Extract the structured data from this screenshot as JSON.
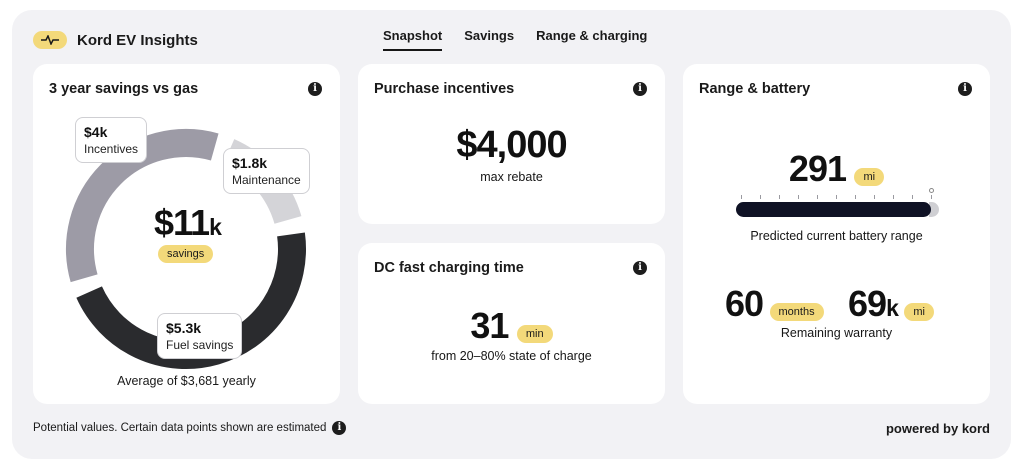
{
  "app": {
    "title": "Kord EV Insights",
    "pulse_icon": "pulse-icon"
  },
  "tabs": [
    {
      "label": "Snapshot",
      "active": true
    },
    {
      "label": "Savings",
      "active": false
    },
    {
      "label": "Range & charging",
      "active": false
    }
  ],
  "savings_card": {
    "title": "3 year savings vs gas",
    "center_value": "$11",
    "center_unit": "k",
    "center_badge": "savings",
    "average": "Average of $3,681 yearly",
    "segments": [
      {
        "value": "$4k",
        "label": "Incentives",
        "amount_k": 4,
        "color": "#9d9ba6"
      },
      {
        "value": "$1.8k",
        "label": "Maintenance",
        "amount_k": 1.8,
        "color": "#d4d4d8"
      },
      {
        "value": "$5.3k",
        "label": "Fuel savings",
        "amount_k": 5.3,
        "color": "#2a2b2e"
      }
    ]
  },
  "incentives_card": {
    "title": "Purchase incentives",
    "value": "$4,000",
    "caption": "max rebate"
  },
  "charging_card": {
    "title": "DC fast charging time",
    "value": "31",
    "unit": "min",
    "caption": "from 20–80% state of charge"
  },
  "range_card": {
    "title": "Range & battery",
    "range_value": "291",
    "range_unit": "mi",
    "range_fill_fraction": 0.96,
    "range_caption": "Predicted current battery range",
    "warranty_months": "60",
    "warranty_months_unit": "months",
    "warranty_miles": "69",
    "warranty_miles_suffix": "k",
    "warranty_miles_unit": "mi",
    "warranty_caption": "Remaining warranty"
  },
  "footer": {
    "note": "Potential values. Certain data points shown are estimated",
    "powered_by": "powered by kord"
  },
  "colors": {
    "accent": "#f3d97a",
    "background": "#f2f2f5",
    "dark": "#0f1225"
  }
}
